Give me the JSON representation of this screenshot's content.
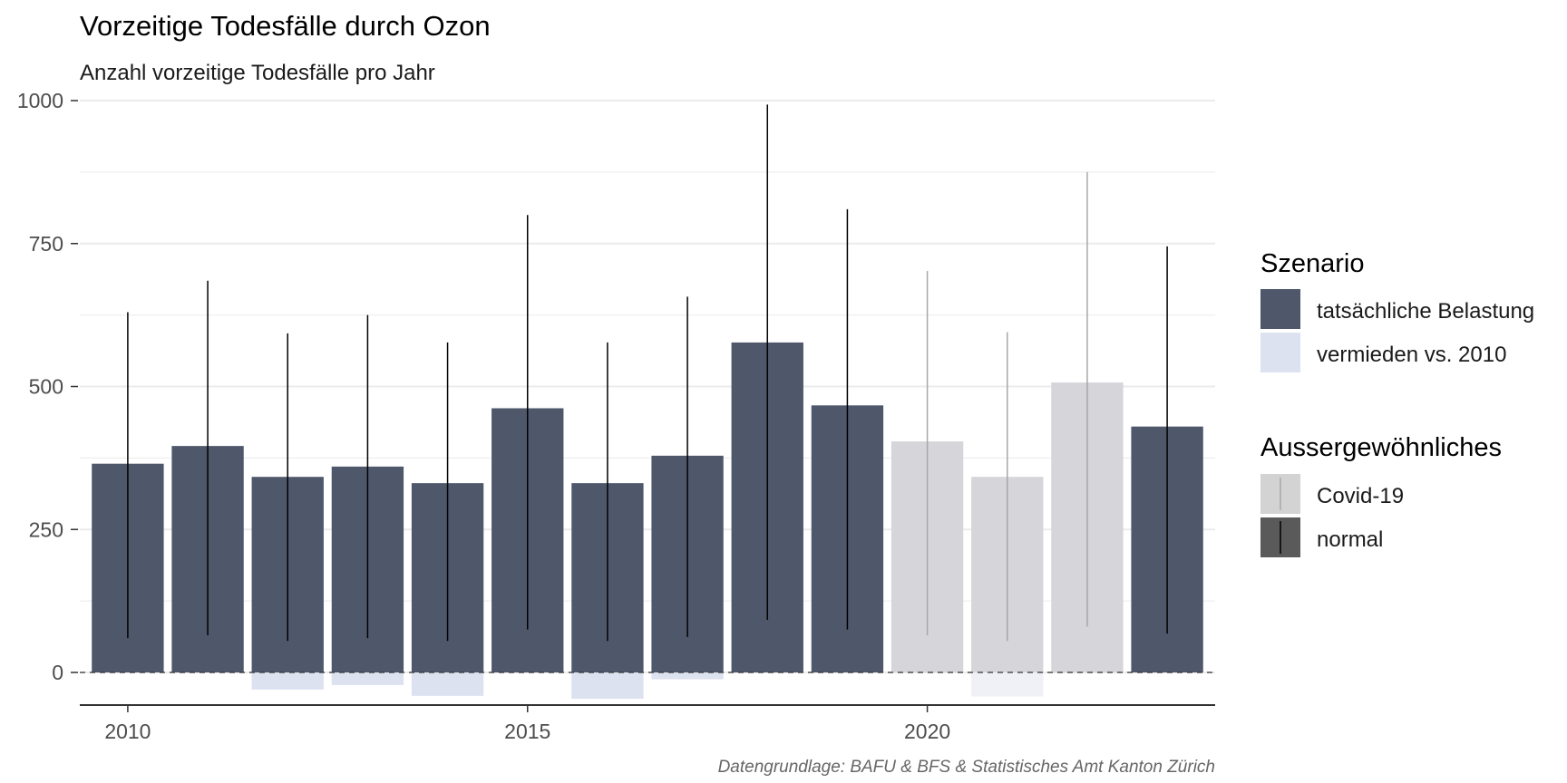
{
  "chart_data": {
    "type": "bar",
    "title": "Vorzeitige Todesfälle durch Ozon",
    "subtitle": "Anzahl vorzeitige Todesfälle pro Jahr",
    "caption": "Datengrundlage: BAFU & BFS & Statistisches Amt Kanton Zürich",
    "x": [
      2010,
      2011,
      2012,
      2013,
      2014,
      2015,
      2016,
      2017,
      2018,
      2019,
      2020,
      2021,
      2022,
      2023
    ],
    "x_ticks": [
      "2010",
      "2015",
      "2020"
    ],
    "y_ticks": [
      "0",
      "250",
      "500",
      "750",
      "1000"
    ],
    "ylim": [
      -60,
      1000
    ],
    "xlim": [
      2009.4,
      2023.6
    ],
    "grid": true,
    "baseline_dashed": 0,
    "series": [
      {
        "name": "tatsächliche Belastung",
        "values": [
          365,
          396,
          342,
          360,
          331,
          462,
          331,
          379,
          577,
          467,
          404,
          342,
          507,
          430
        ]
      },
      {
        "name": "vermieden vs. 2010",
        "values": [
          0,
          0,
          -30,
          -22,
          -41,
          0,
          -46,
          -12,
          0,
          0,
          0,
          -42,
          0,
          0
        ]
      }
    ],
    "error_bars": {
      "low": [
        60,
        65,
        55,
        60,
        55,
        75,
        55,
        62,
        92,
        75,
        65,
        55,
        80,
        68
      ],
      "high": [
        630,
        685,
        593,
        625,
        577,
        800,
        577,
        657,
        993,
        810,
        702,
        595,
        875,
        745
      ]
    },
    "category": [
      "normal",
      "normal",
      "normal",
      "normal",
      "normal",
      "normal",
      "normal",
      "normal",
      "normal",
      "normal",
      "Covid-19",
      "Covid-19",
      "Covid-19",
      "normal"
    ],
    "legend": {
      "placement": "right",
      "groups": [
        {
          "title": "Szenario",
          "items": [
            {
              "label": "tatsächliche Belastung",
              "color": "#4f586b"
            },
            {
              "label": "vermieden vs. 2010",
              "color": "#dde2f0"
            }
          ]
        },
        {
          "title": "Aussergewöhnliches",
          "items": [
            {
              "label": "Covid-19",
              "color": "#d3d3d3"
            },
            {
              "label": "normal",
              "color": "#5a5a5a"
            }
          ]
        }
      ]
    },
    "colors": {
      "actual_normal": "#4f586b",
      "actual_covid": "#d5d5da",
      "avoided_normal": "#dde2f0",
      "avoided_covid": "#f0f1f7",
      "errorbar_normal": "#000000",
      "errorbar_covid": "#a8a8a8",
      "grid": "#ebebeb"
    }
  }
}
